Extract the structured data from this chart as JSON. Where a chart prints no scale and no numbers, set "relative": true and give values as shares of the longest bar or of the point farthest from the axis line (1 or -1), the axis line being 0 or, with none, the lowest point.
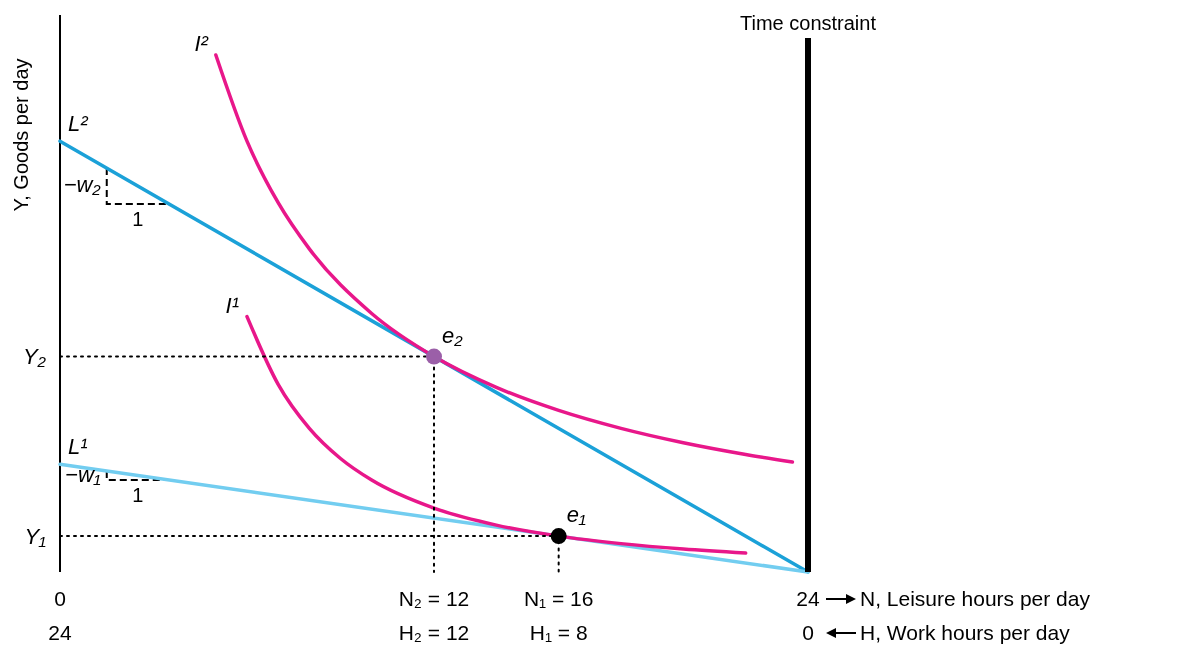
{
  "chart_data": {
    "type": "line",
    "relative": true,
    "xlim": [
      0,
      24
    ],
    "xticks": [
      0,
      {
        "value": 12,
        "label": "N₂ = 12"
      },
      {
        "value": 16,
        "label": "N₁ = 16"
      },
      24
    ],
    "x2lim": [
      24,
      0
    ],
    "x2ticks": [
      24,
      {
        "value": 12,
        "label": "H₂ = 12"
      },
      {
        "value": 8,
        "label": "H₁ = 8"
      },
      0
    ],
    "xlabel": "N, Leisure hours per day",
    "x2label": "H, Work hours per day",
    "ylabel": "Y, Goods per day",
    "grid": false,
    "series": [
      {
        "name": "L²",
        "color": "#1ba1d8",
        "x": [
          0,
          24
        ],
        "values": [
          0.8333,
          0
        ]
      },
      {
        "name": "L¹",
        "color": "#72cdf0",
        "x": [
          0,
          24
        ],
        "values": [
          0.2083,
          0
        ]
      },
      {
        "name": "I²",
        "color": "#e8178a",
        "x": [
          5,
          6,
          7,
          8,
          10,
          12,
          14,
          16,
          18,
          20,
          22,
          23.5
        ],
        "values": [
          1.0,
          0.8333,
          0.7143,
          0.625,
          0.5,
          0.4167,
          0.3571,
          0.3125,
          0.2778,
          0.25,
          0.2273,
          0.2128
        ]
      },
      {
        "name": "I¹",
        "color": "#e8178a",
        "x": [
          6,
          7,
          8,
          9,
          10,
          12,
          14,
          16,
          18,
          20,
          22
        ],
        "values": [
          0.4939,
          0.3629,
          0.2778,
          0.2195,
          0.1778,
          0.1235,
          0.0907,
          0.0694,
          0.0549,
          0.0444,
          0.0367
        ]
      },
      {
        "line_style": "dotted",
        "color": "#000000",
        "x": [
          0,
          12,
          12
        ],
        "values": [
          0.4167,
          0.4167,
          0
        ]
      },
      {
        "line_style": "dotted",
        "color": "#000000",
        "x": [
          0,
          16,
          16
        ],
        "values": [
          0.0694,
          0.0694,
          0
        ]
      },
      {
        "name": "e₂",
        "type": "scatter",
        "marker": "circle",
        "color": "#9b5fa8",
        "x": [
          12
        ],
        "values": [
          0.4167
        ]
      },
      {
        "name": "e₁",
        "type": "scatter",
        "marker": "circle",
        "color": "#000000",
        "x": [
          16
        ],
        "values": [
          0.0694
        ]
      }
    ],
    "ref_lines": [
      {
        "axis": "x",
        "value": 24,
        "label": "Time constraint",
        "color": "#000000"
      }
    ],
    "annotations": [
      {
        "text": "Y₂",
        "x": 0,
        "y": 0.4167
      },
      {
        "text": "Y₁",
        "x": 0,
        "y": 0.0694
      },
      "−w₂",
      "1",
      "−w₁",
      "1"
    ]
  }
}
